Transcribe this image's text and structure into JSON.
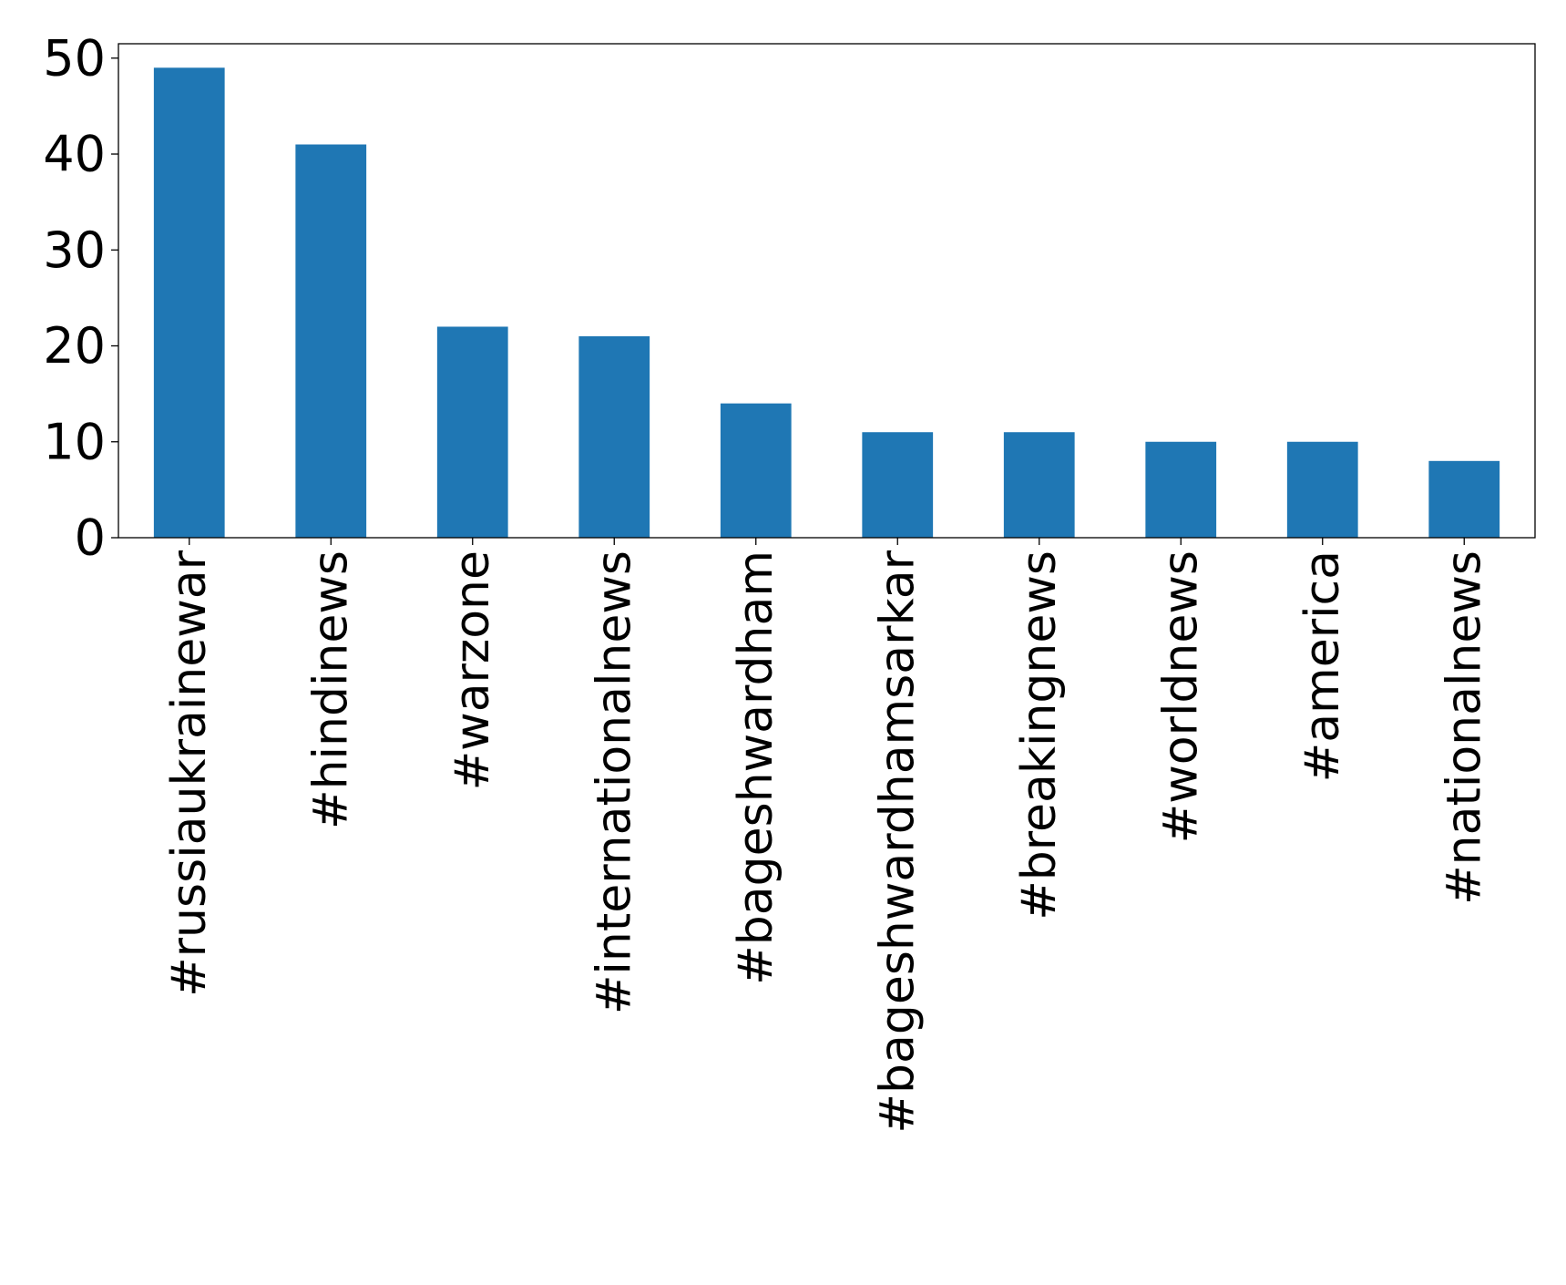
{
  "chart_data": {
    "type": "bar",
    "title": "",
    "xlabel": "",
    "ylabel": "",
    "categories": [
      "#russiaukrainewar",
      "#hindinews",
      "#warzone",
      "#internationalnews",
      "#bageshwardham",
      "#bageshwardhamsarkar",
      "#breakingnews",
      "#worldnews",
      "#america",
      "#nationalnews"
    ],
    "values": [
      49,
      41,
      22,
      21,
      14,
      11,
      11,
      10,
      10,
      8
    ],
    "ylim": [
      0,
      51.5
    ],
    "yticks": [
      0,
      10,
      20,
      30,
      40,
      50
    ],
    "grid": false,
    "legend": "none",
    "bar_color": "#1f77b4"
  }
}
